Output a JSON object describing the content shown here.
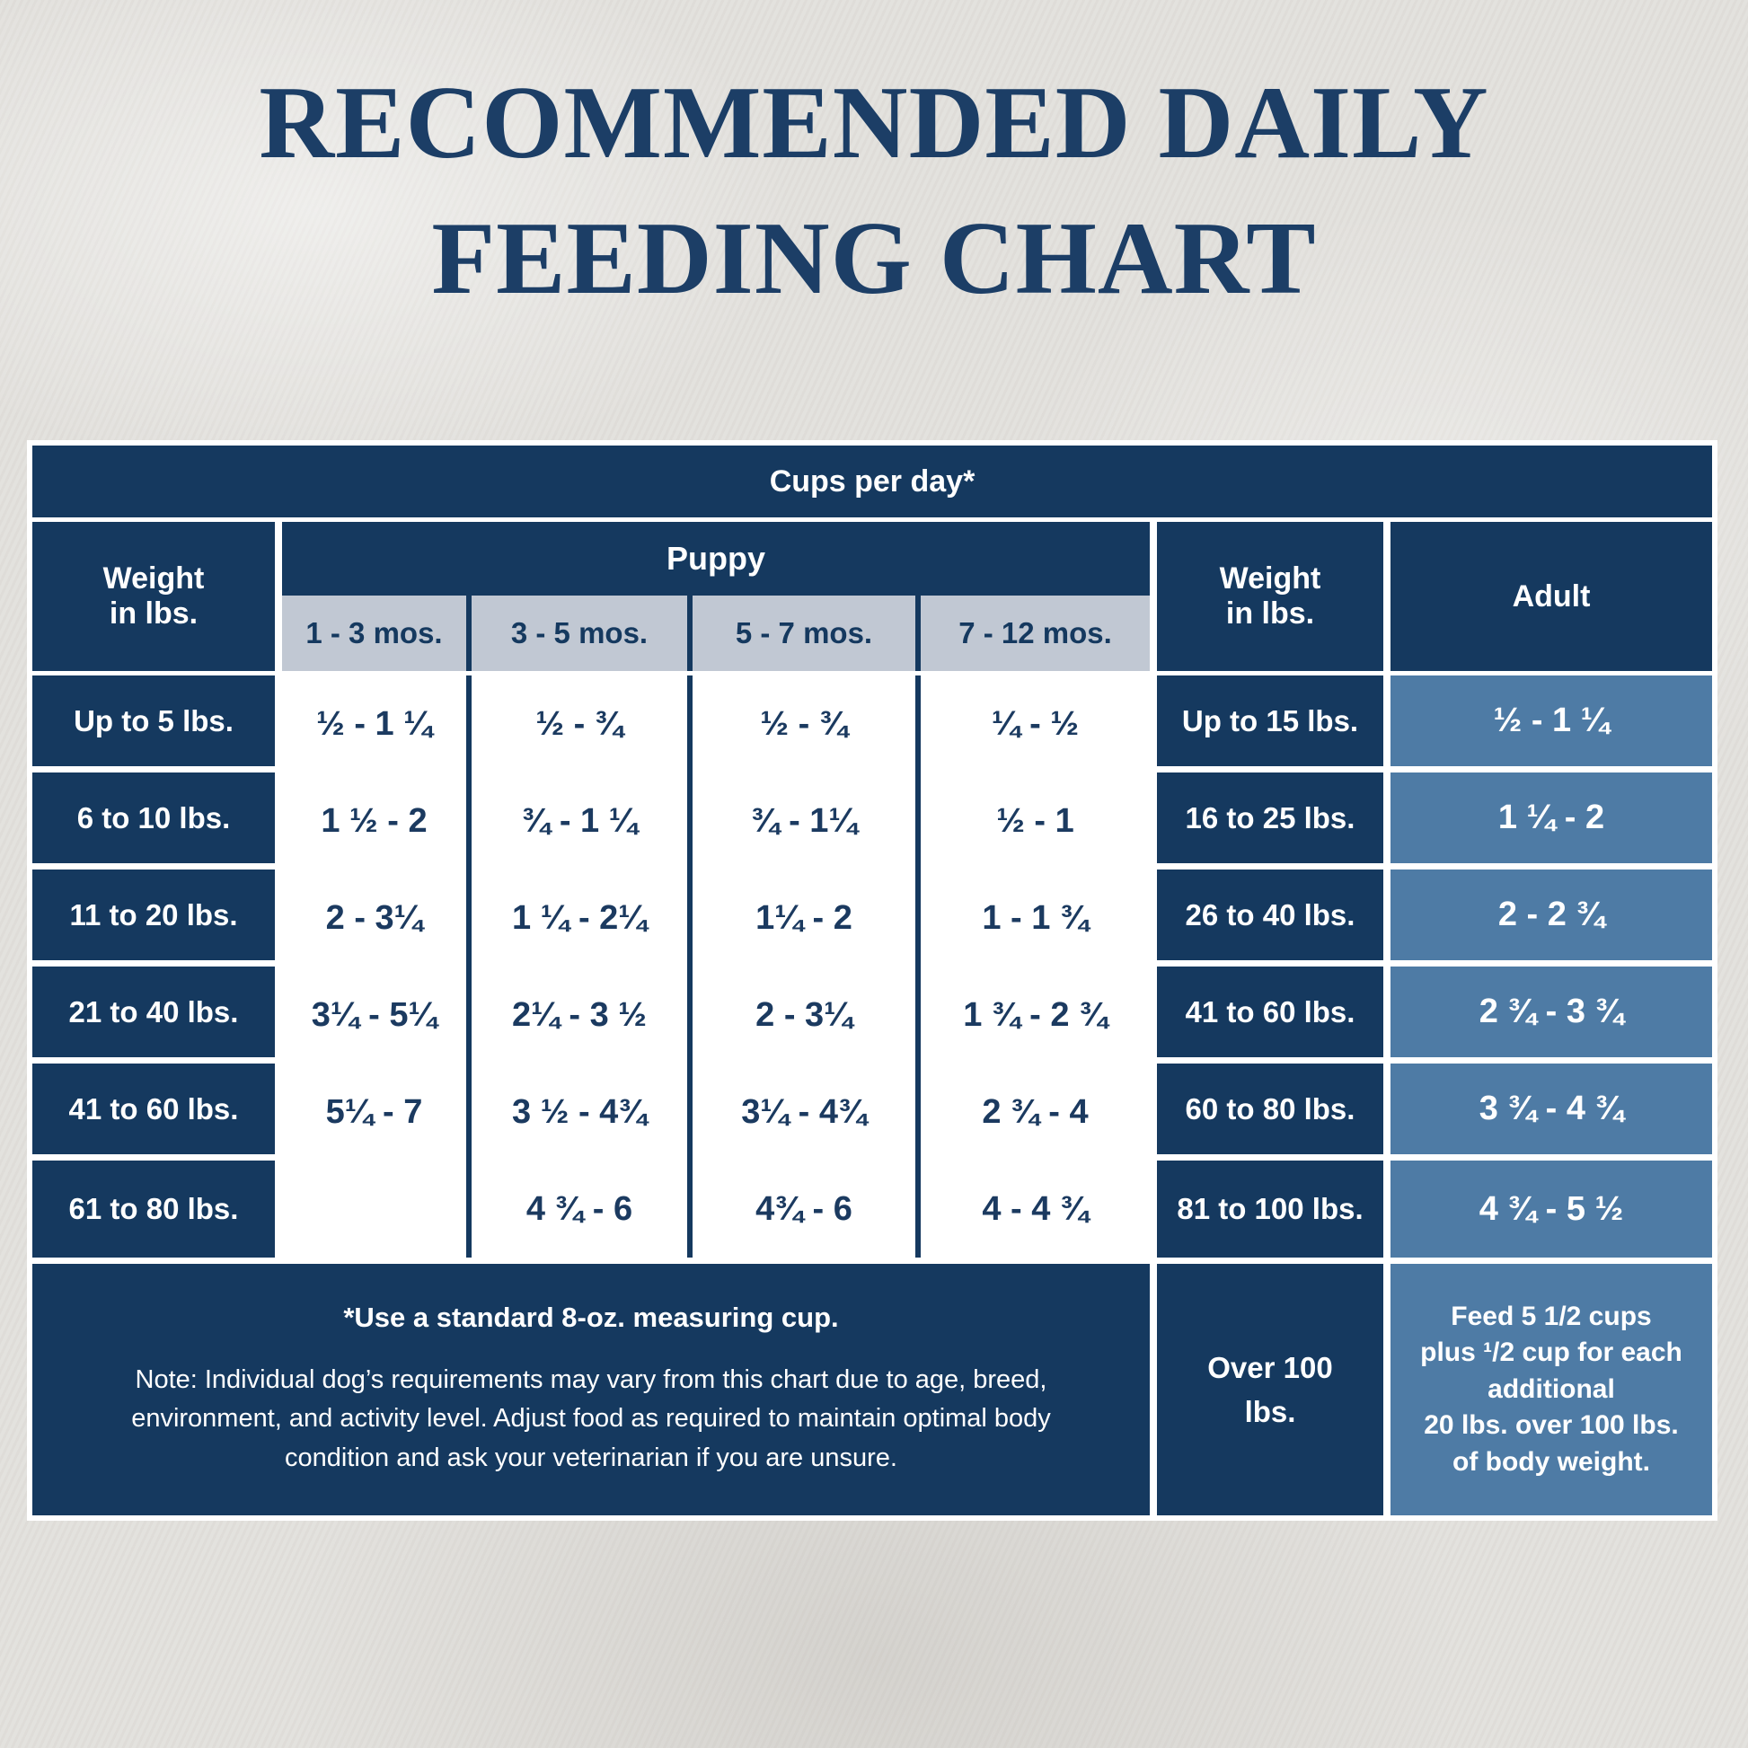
{
  "colors": {
    "navy": "#15395f",
    "steel_blue": "#4e7ba5",
    "subheader_gray": "#c1c8d3",
    "background": "#e2e0dc",
    "title_navy": "#1c3e66",
    "white": "#ffffff"
  },
  "title": {
    "line1": "RECOMMENDED DAILY",
    "line2": "FEEDING CHART"
  },
  "chart_data": {
    "type": "table",
    "title": "RECOMMENDED DAILY FEEDING CHART",
    "unit_header": "Cups per day*",
    "puppy": {
      "weight_header": "Weight\nin lbs.",
      "group_label": "Puppy",
      "age_columns": [
        "1 - 3 mos.",
        "3 - 5 mos.",
        "5 - 7 mos.",
        "7 - 12 mos."
      ],
      "rows": [
        {
          "weight": "Up to 5 lbs.",
          "values": [
            "½ - 1 ¼",
            "½ - ¾",
            "½ - ¾",
            "¼ - ½"
          ]
        },
        {
          "weight": "6 to 10 lbs.",
          "values": [
            "1 ½ - 2",
            "¾ - 1 ¼",
            "¾ - 1¼",
            "½ - 1"
          ]
        },
        {
          "weight": "11 to 20 lbs.",
          "values": [
            "2 - 3¼",
            "1 ¼ - 2¼",
            "1¼ - 2",
            "1 - 1 ¾"
          ]
        },
        {
          "weight": "21 to 40 lbs.",
          "values": [
            "3¼ - 5¼",
            "2¼ - 3 ½",
            "2 - 3¼",
            "1 ¾ - 2 ¾"
          ]
        },
        {
          "weight": "41 to 60 lbs.",
          "values": [
            "5¼ - 7",
            "3 ½ - 4¾",
            "3¼ - 4¾",
            "2 ¾ - 4"
          ]
        },
        {
          "weight": "61 to 80 lbs.",
          "values": [
            "",
            "4 ¾ - 6",
            "4¾ - 6",
            "4 - 4 ¾"
          ]
        }
      ]
    },
    "adult": {
      "weight_header": "Weight\nin lbs.",
      "group_label": "Adult",
      "rows": [
        {
          "weight": "Up to 15 lbs.",
          "value": "½ - 1 ¼"
        },
        {
          "weight": "16 to 25 lbs.",
          "value": "1 ¼ - 2"
        },
        {
          "weight": "26 to 40 lbs.",
          "value": "2 - 2 ¾"
        },
        {
          "weight": "41 to 60 lbs.",
          "value": "2 ¾ - 3 ¾"
        },
        {
          "weight": "60 to 80 lbs.",
          "value": "3 ¾ - 4 ¾"
        },
        {
          "weight": "81 to 100 lbs.",
          "value": "4 ¾ - 5 ½"
        }
      ],
      "over_row": {
        "weight": "Over 100\nlbs.",
        "value": "Feed 5 1/2 cups\nplus ¹/2 cup for each\nadditional\n20 lbs. over 100 lbs.\nof body weight."
      }
    },
    "footnotes": {
      "bold": "*Use a standard 8-oz. measuring cup.",
      "note": "Note: Individual dog’s requirements may vary from this chart due to age, breed, environment, and activity level. Adjust food as required to maintain optimal body condition and ask your veterinarian if you are unsure."
    }
  }
}
